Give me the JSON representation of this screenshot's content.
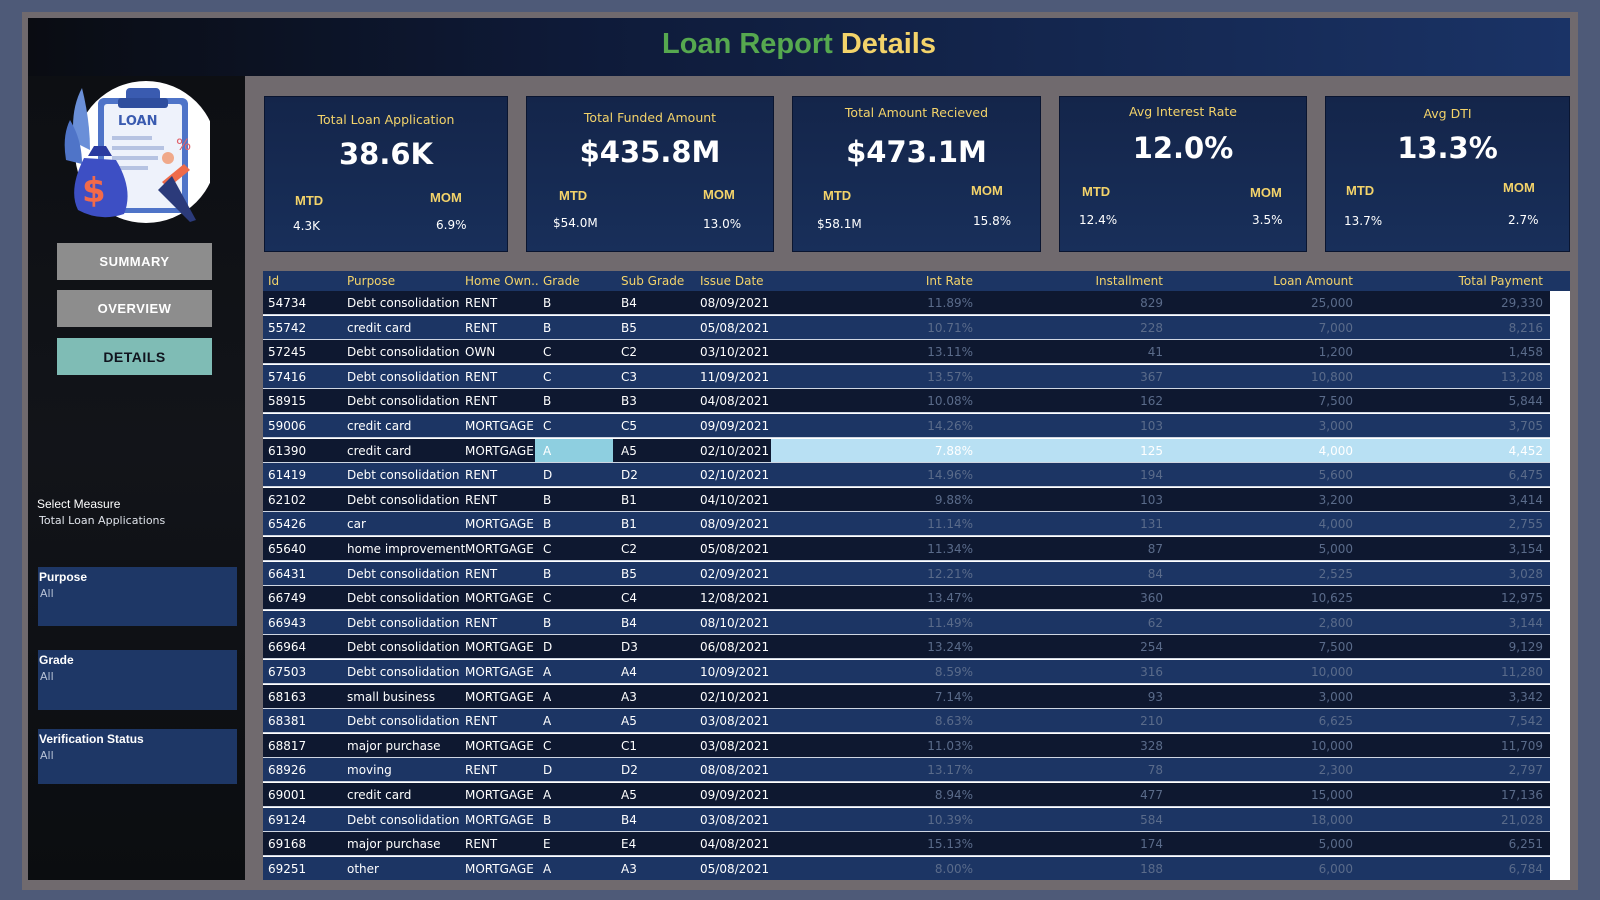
{
  "header": {
    "title_part1": "Loan Report",
    "title_part2": "Details"
  },
  "logo": {
    "label": "LOAN",
    "icon": "loan-clipboard-illustration"
  },
  "nav": {
    "summary": "SUMMARY",
    "overview": "OVERVIEW",
    "details": "DETAILS"
  },
  "measure": {
    "label": "Select Measure",
    "value": "Total Loan Applications"
  },
  "filters": {
    "purpose": {
      "label": "Purpose",
      "value": "All"
    },
    "grade": {
      "label": "Grade",
      "value": "All"
    },
    "verification": {
      "label": "Verification Status",
      "value": "All"
    }
  },
  "kpis": [
    {
      "title": "Total Loan Application",
      "value": "38.6K",
      "mtd_label": "MTD",
      "mtd": "4.3K",
      "mom_label": "MOM",
      "mom": "6.9%"
    },
    {
      "title": "Total Funded Amount",
      "value": "$435.8M",
      "mtd_label": "MTD",
      "mtd": "$54.0M",
      "mom_label": "MOM",
      "mom": "13.0%"
    },
    {
      "title": "Total Amount Recieved",
      "value": "$473.1M",
      "mtd_label": "MTD",
      "mtd": "$58.1M",
      "mom_label": "MOM",
      "mom": "15.8%"
    },
    {
      "title": "Avg Interest Rate",
      "value": "12.0%",
      "mtd_label": "MTD",
      "mtd": "12.4%",
      "mom_label": "MOM",
      "mom": "3.5%"
    },
    {
      "title": "Avg DTI",
      "value": "13.3%",
      "mtd_label": "MTD",
      "mtd": "13.7%",
      "mom_label": "MOM",
      "mom": "2.7%"
    }
  ],
  "table": {
    "headers": [
      "Id",
      "Purpose",
      "Home Own..",
      "Grade",
      "Sub Grade",
      "Issue Date",
      "Int Rate",
      "Installment",
      "Loan Amount",
      "Total Payment"
    ],
    "rows": [
      [
        "54734",
        "Debt consolidation",
        "RENT",
        "B",
        "B4",
        "08/09/2021",
        "11.89%",
        "829",
        "25,000",
        "29,330"
      ],
      [
        "55742",
        "credit card",
        "RENT",
        "B",
        "B5",
        "05/08/2021",
        "10.71%",
        "228",
        "7,000",
        "8,216"
      ],
      [
        "57245",
        "Debt consolidation",
        "OWN",
        "C",
        "C2",
        "03/10/2021",
        "13.11%",
        "41",
        "1,200",
        "1,458"
      ],
      [
        "57416",
        "Debt consolidation",
        "RENT",
        "C",
        "C3",
        "11/09/2021",
        "13.57%",
        "367",
        "10,800",
        "13,208"
      ],
      [
        "58915",
        "Debt consolidation",
        "RENT",
        "B",
        "B3",
        "04/08/2021",
        "10.08%",
        "162",
        "7,500",
        "5,844"
      ],
      [
        "59006",
        "credit card",
        "MORTGAGE",
        "C",
        "C5",
        "09/09/2021",
        "14.26%",
        "103",
        "3,000",
        "3,705"
      ],
      [
        "61390",
        "credit card",
        "MORTGAGE",
        "A",
        "A5",
        "02/10/2021",
        "7.88%",
        "125",
        "4,000",
        "4,452"
      ],
      [
        "61419",
        "Debt consolidation",
        "RENT",
        "D",
        "D2",
        "02/10/2021",
        "14.96%",
        "194",
        "5,600",
        "6,475"
      ],
      [
        "62102",
        "Debt consolidation",
        "RENT",
        "B",
        "B1",
        "04/10/2021",
        "9.88%",
        "103",
        "3,200",
        "3,414"
      ],
      [
        "65426",
        "car",
        "MORTGAGE",
        "B",
        "B1",
        "08/09/2021",
        "11.14%",
        "131",
        "4,000",
        "2,755"
      ],
      [
        "65640",
        "home improvement",
        "MORTGAGE",
        "C",
        "C2",
        "05/08/2021",
        "11.34%",
        "87",
        "5,000",
        "3,154"
      ],
      [
        "66431",
        "Debt consolidation",
        "RENT",
        "B",
        "B5",
        "02/09/2021",
        "12.21%",
        "84",
        "2,525",
        "3,028"
      ],
      [
        "66749",
        "Debt consolidation",
        "MORTGAGE",
        "C",
        "C4",
        "12/08/2021",
        "13.47%",
        "360",
        "10,625",
        "12,975"
      ],
      [
        "66943",
        "Debt consolidation",
        "RENT",
        "B",
        "B4",
        "08/10/2021",
        "11.49%",
        "62",
        "2,800",
        "3,144"
      ],
      [
        "66964",
        "Debt consolidation",
        "MORTGAGE",
        "D",
        "D3",
        "06/08/2021",
        "13.24%",
        "254",
        "7,500",
        "9,129"
      ],
      [
        "67503",
        "Debt consolidation",
        "MORTGAGE",
        "A",
        "A4",
        "10/09/2021",
        "8.59%",
        "316",
        "10,000",
        "11,280"
      ],
      [
        "68163",
        "small business",
        "MORTGAGE",
        "A",
        "A3",
        "02/10/2021",
        "7.14%",
        "93",
        "3,000",
        "3,342"
      ],
      [
        "68381",
        "Debt consolidation",
        "RENT",
        "A",
        "A5",
        "03/08/2021",
        "8.63%",
        "210",
        "6,625",
        "7,542"
      ],
      [
        "68817",
        "major purchase",
        "MORTGAGE",
        "C",
        "C1",
        "03/08/2021",
        "11.03%",
        "328",
        "10,000",
        "11,709"
      ],
      [
        "68926",
        "moving",
        "RENT",
        "D",
        "D2",
        "08/08/2021",
        "13.17%",
        "78",
        "2,300",
        "2,797"
      ],
      [
        "69001",
        "credit card",
        "MORTGAGE",
        "A",
        "A5",
        "09/09/2021",
        "8.94%",
        "477",
        "15,000",
        "17,136"
      ],
      [
        "69124",
        "Debt consolidation",
        "MORTGAGE",
        "B",
        "B4",
        "03/08/2021",
        "10.39%",
        "584",
        "18,000",
        "21,028"
      ],
      [
        "69168",
        "major purchase",
        "RENT",
        "E",
        "E4",
        "04/08/2021",
        "15.13%",
        "174",
        "5,000",
        "6,251"
      ],
      [
        "69251",
        "other",
        "MORTGAGE",
        "A",
        "A3",
        "05/08/2021",
        "8.00%",
        "188",
        "6,000",
        "6,784"
      ]
    ],
    "highlight_row": 6
  },
  "colors": {
    "title_green": "#56a84f",
    "title_gold": "#f3d36a",
    "row_dark": "#0e1830",
    "row_blue": "#1c3564",
    "row_highlight": "#b8e0f3",
    "nav_active": "#7fbcb5"
  }
}
